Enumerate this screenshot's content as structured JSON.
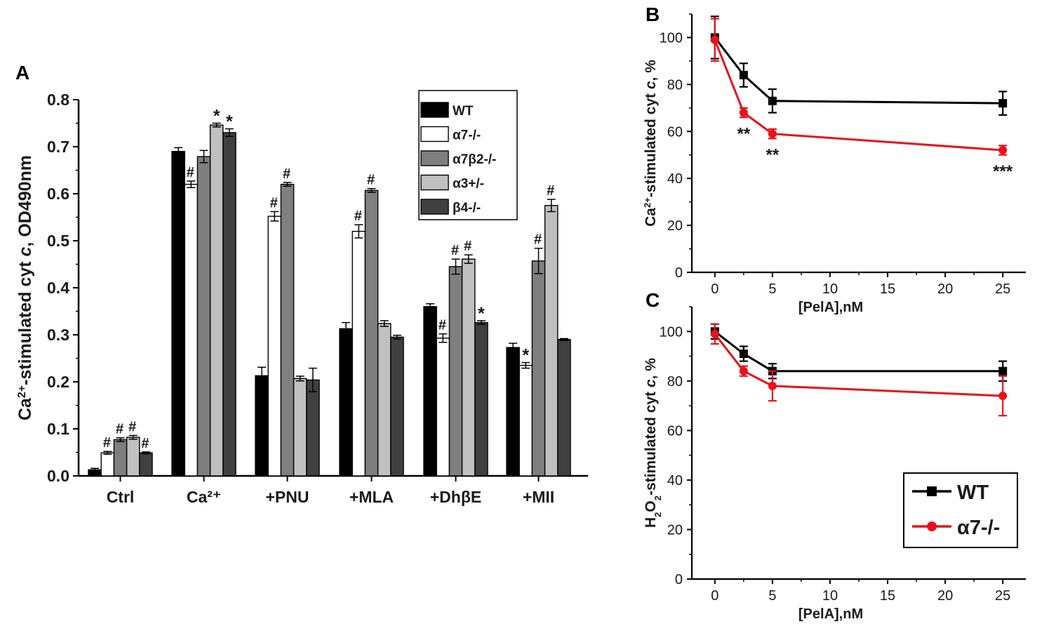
{
  "chart_data": [
    {
      "panel": "A",
      "type": "bar",
      "ylabel": {
        "prefix": "Ca",
        "sup": "2+",
        "rest": "-stimulated cyt ",
        "italic": "c",
        "suffix": ", OD490nm"
      },
      "ylim": [
        0.0,
        0.8
      ],
      "yticks": [
        "0.0",
        "0.1",
        "0.2",
        "0.3",
        "0.4",
        "0.5",
        "0.6",
        "0.7",
        "0.8"
      ],
      "categories": [
        "Ctrl",
        "Ca²⁺",
        "+PNU",
        "+MLA",
        "+DhβE",
        "+MII"
      ],
      "series": [
        {
          "name": "WT",
          "color": "#000000",
          "values": [
            0.013,
            0.69,
            0.213,
            0.313,
            0.36,
            0.273
          ],
          "errors": [
            0.003,
            0.008,
            0.018,
            0.013,
            0.006,
            0.009
          ],
          "marks": [
            "",
            "",
            "",
            "",
            "",
            ""
          ]
        },
        {
          "name": "α7-/-",
          "color": "#ffffff",
          "values": [
            0.049,
            0.62,
            0.552,
            0.52,
            0.293,
            0.235
          ],
          "errors": [
            0.003,
            0.007,
            0.01,
            0.014,
            0.009,
            0.006
          ],
          "marks": [
            "#",
            "#",
            "#",
            "#",
            "#",
            "*"
          ]
        },
        {
          "name": "α7β2-/-",
          "color": "#7f7f7f",
          "values": [
            0.077,
            0.679,
            0.62,
            0.607,
            0.445,
            0.457
          ],
          "errors": [
            0.004,
            0.013,
            0.004,
            0.004,
            0.016,
            0.027
          ],
          "marks": [
            "#",
            "",
            "#",
            "#",
            "#",
            "#"
          ]
        },
        {
          "name": "α3+/-",
          "color": "#c0c0c0",
          "values": [
            0.082,
            0.746,
            0.207,
            0.324,
            0.461,
            0.575
          ],
          "errors": [
            0.004,
            0.004,
            0.005,
            0.006,
            0.009,
            0.013
          ],
          "marks": [
            "#",
            "*",
            "",
            "",
            "#",
            "#"
          ]
        },
        {
          "name": "β4-/-",
          "color": "#404040",
          "values": [
            0.049,
            0.73,
            0.204,
            0.295,
            0.326,
            0.29
          ],
          "errors": [
            0.002,
            0.008,
            0.025,
            0.004,
            0.004,
            0.002
          ],
          "marks": [
            "#",
            "*",
            "",
            "",
            "*",
            ""
          ]
        }
      ],
      "legend_position": "top-right"
    },
    {
      "panel": "B",
      "type": "line",
      "xlabel": "[PelA],nM",
      "ylabel": {
        "prefix": "Ca",
        "sup": "2+",
        "rest": "-stimulated cyt ",
        "italic": "c",
        "suffix": ", %"
      },
      "xlim": [
        -2,
        27
      ],
      "ylim": [
        0,
        110
      ],
      "xticks": [
        "0",
        "5",
        "10",
        "15",
        "20",
        "25"
      ],
      "yticks": [
        "0",
        "20",
        "40",
        "60",
        "80",
        "100"
      ],
      "x": [
        0,
        2.5,
        5,
        25
      ],
      "series": [
        {
          "name": "WT",
          "color": "#000000",
          "marker": "square",
          "values": [
            100,
            84,
            73,
            72
          ],
          "errors": [
            9,
            5,
            5,
            5
          ]
        },
        {
          "name": "α7-/-",
          "color": "#e8121b",
          "marker": "circle",
          "values": [
            99,
            68,
            59,
            52
          ],
          "errors": [
            9,
            2,
            2,
            2
          ]
        }
      ],
      "annotations": [
        {
          "x": 2.5,
          "y": 68,
          "text": "**"
        },
        {
          "x": 5,
          "y": 59,
          "text": "**"
        },
        {
          "x": 25,
          "y": 52,
          "text": "***"
        }
      ]
    },
    {
      "panel": "C",
      "type": "line",
      "xlabel": "[PelA],nM",
      "ylabel": {
        "prefix": "H",
        "sub1": "2",
        "mid": "O",
        "sub2": "2",
        "rest": "-stimulated cyt ",
        "italic": "c",
        "suffix": ", %"
      },
      "xlim": [
        -2,
        27
      ],
      "ylim": [
        0,
        110
      ],
      "xticks": [
        "0",
        "5",
        "10",
        "15",
        "20",
        "25"
      ],
      "yticks": [
        "0",
        "20",
        "40",
        "60",
        "80",
        "100"
      ],
      "x": [
        0,
        2.5,
        5,
        25
      ],
      "series": [
        {
          "name": "WT",
          "color": "#000000",
          "marker": "square",
          "values": [
            100,
            91,
            84,
            84
          ],
          "errors": [
            3,
            3,
            3,
            4
          ]
        },
        {
          "name": "α7-/-",
          "color": "#e8121b",
          "marker": "circle",
          "values": [
            99,
            84,
            78,
            74
          ],
          "errors": [
            4,
            2,
            6,
            8
          ]
        }
      ],
      "legend_position": "bottom-right"
    }
  ],
  "labels": {
    "panel_a": "A",
    "panel_b": "B",
    "panel_c": "C"
  }
}
